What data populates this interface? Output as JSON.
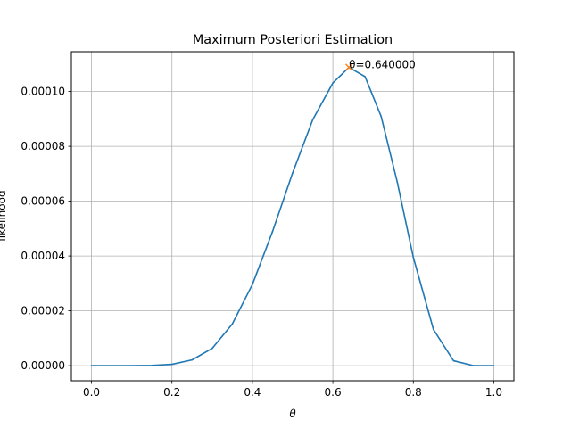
{
  "chart_data": {
    "type": "line",
    "title": "Maximum Posteriori Estimation",
    "xlabel": "θ",
    "ylabel": "likelihood",
    "xlim": [
      -0.05,
      1.05
    ],
    "ylim": [
      -5.5e-06,
      0.0001145
    ],
    "xticks": [
      0.0,
      0.2,
      0.4,
      0.6,
      0.8,
      1.0
    ],
    "xtick_labels": [
      "0.0",
      "0.2",
      "0.4",
      "0.6",
      "0.8",
      "1.0"
    ],
    "yticks": [
      0.0,
      2e-05,
      4e-05,
      6e-05,
      8e-05,
      0.0001
    ],
    "ytick_labels": [
      "0.00000",
      "0.00002",
      "0.00004",
      "0.00006",
      "0.00008",
      "0.00010"
    ],
    "grid": true,
    "series": [
      {
        "color": "#1f77b4",
        "x": [
          0.0,
          0.05,
          0.1,
          0.15,
          0.2,
          0.25,
          0.3,
          0.35,
          0.4,
          0.45,
          0.5,
          0.55,
          0.6,
          0.64,
          0.68,
          0.72,
          0.76,
          0.8,
          0.85,
          0.9,
          0.95,
          1.0
        ],
        "y": [
          0.0,
          0.0,
          0.0,
          1e-07,
          5e-07,
          2.1e-06,
          6.3e-06,
          1.52e-05,
          2.96e-05,
          4.89e-05,
          7.03e-05,
          8.97e-05,
          0.0001031,
          0.0001088,
          0.0001054,
          9.09e-05,
          6.7e-05,
          3.95e-05,
          1.32e-05,
          1.8e-06,
          0.0,
          0.0
        ]
      }
    ],
    "marker": {
      "x": 0.64,
      "y": 0.0001088,
      "symbol": "x",
      "color": "#ff7f0e"
    },
    "annotation": {
      "text": "θ=0.640000",
      "x": 0.64,
      "y": 0.0001088
    }
  }
}
